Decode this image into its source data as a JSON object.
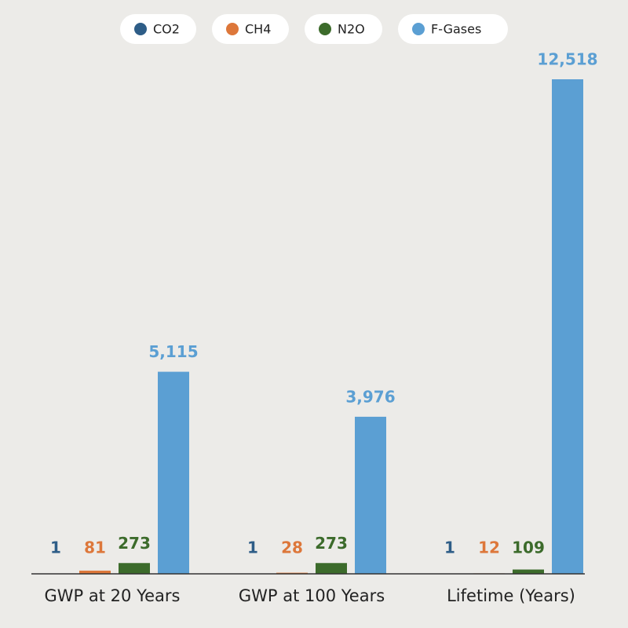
{
  "chart_data": {
    "type": "bar",
    "categories": [
      "GWP at 20 Years",
      "GWP at 100 Years",
      "Lifetime (Years)"
    ],
    "series": [
      {
        "name": "CO2",
        "color": "#2e5d87",
        "values": [
          1,
          1,
          1
        ]
      },
      {
        "name": "CH4",
        "color": "#dd773a",
        "values": [
          81,
          28,
          12
        ]
      },
      {
        "name": "N2O",
        "color": "#3c6b2b",
        "values": [
          273,
          273,
          109
        ]
      },
      {
        "name": "F-Gases",
        "color": "#5b9fd3",
        "values": [
          5115,
          3976,
          12518
        ],
        "value_labels": [
          "5,115",
          "3,976",
          "12,518"
        ]
      }
    ],
    "legend": "top"
  }
}
